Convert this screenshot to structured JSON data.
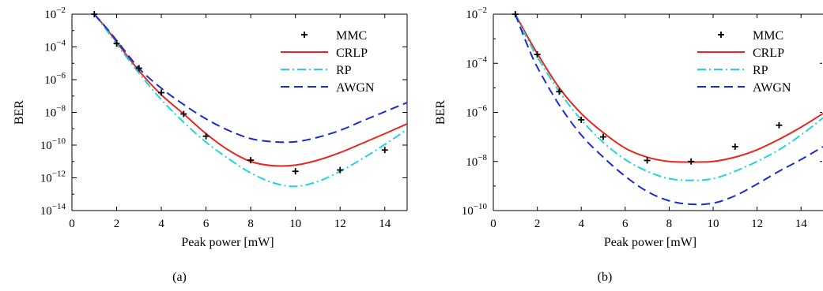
{
  "colors": {
    "MMC": "#000000",
    "CRLP": "#e8251f",
    "RP": "#21d6d9",
    "AWGN": "#1a2bd6"
  },
  "chart_data": [
    {
      "type": "line",
      "caption": "(a)",
      "xlabel": "Peak power [mW]",
      "ylabel": "BER",
      "xlim": [
        0,
        15
      ],
      "ylim_exp": [
        -14,
        -2
      ],
      "yscale": "log",
      "grid": false,
      "legend_position": "top-right",
      "x_ticks": [
        {
          "v": 0,
          "label": "0"
        },
        {
          "v": 2,
          "label": "2"
        },
        {
          "v": 4,
          "label": "4"
        },
        {
          "v": 6,
          "label": "6"
        },
        {
          "v": 8,
          "label": "8"
        },
        {
          "v": 10,
          "label": "10"
        },
        {
          "v": 12,
          "label": "12"
        },
        {
          "v": 14,
          "label": "14"
        }
      ],
      "y_ticks": [
        {
          "e": -2,
          "base": "10",
          "exp": "−2"
        },
        {
          "e": -4,
          "base": "10",
          "exp": "−4"
        },
        {
          "e": -6,
          "base": "10",
          "exp": "−6"
        },
        {
          "e": -8,
          "base": "10",
          "exp": "−8"
        },
        {
          "e": -10,
          "base": "10",
          "exp": "−10"
        },
        {
          "e": -12,
          "base": "10",
          "exp": "−12"
        },
        {
          "e": -14,
          "base": "10",
          "exp": "−14"
        }
      ],
      "series": [
        {
          "name": "MMC",
          "style": "points",
          "color": "MMC",
          "x": [
            1,
            2,
            3,
            4,
            5,
            6,
            8,
            10,
            12,
            14
          ],
          "y": [
            0.01,
            0.00016,
            5e-06,
            1.6e-07,
            8e-09,
            3.5e-10,
            1.2e-11,
            2.5e-12,
            3e-12,
            5e-11
          ]
        },
        {
          "name": "CRLP",
          "style": "solid",
          "color": "CRLP",
          "x": [
            1,
            1.5,
            2,
            3,
            4,
            5,
            6,
            7,
            8,
            9,
            10,
            11,
            12,
            13,
            14,
            15
          ],
          "y": [
            0.01,
            0.0016,
            0.0002,
            3.5e-06,
            1.2e-07,
            8e-09,
            5e-10,
            5e-11,
            1e-11,
            5.5e-12,
            6e-12,
            1.2e-11,
            3.5e-11,
            1.3e-10,
            5e-10,
            2e-09
          ]
        },
        {
          "name": "RP",
          "style": "dashdot",
          "color": "RP",
          "x": [
            1,
            1.5,
            2,
            3,
            4,
            5,
            6,
            7,
            8,
            9,
            10,
            11,
            12,
            13,
            14,
            15
          ],
          "y": [
            0.01,
            0.0013,
            0.00015,
            2.5e-06,
            6e-08,
            2.5e-09,
            1.5e-10,
            1.5e-11,
            2e-12,
            5e-13,
            3e-13,
            6e-13,
            2.5e-12,
            1.5e-11,
            1.1e-10,
            9e-10
          ]
        },
        {
          "name": "AWGN",
          "style": "dashed",
          "color": "AWGN",
          "x": [
            1,
            1.5,
            2,
            3,
            4,
            5,
            6,
            7,
            8,
            9,
            10,
            11,
            12,
            13,
            14,
            15
          ],
          "y": [
            0.01,
            0.0017,
            0.00025,
            5e-06,
            3e-07,
            3e-08,
            4e-09,
            8e-10,
            2.5e-10,
            1.6e-10,
            1.6e-10,
            3e-10,
            8e-10,
            3e-09,
            1.1e-08,
            4e-08
          ]
        }
      ]
    },
    {
      "type": "line",
      "caption": "(b)",
      "xlabel": "Peak power [mW]",
      "ylabel": "BER",
      "xlim": [
        0,
        15
      ],
      "ylim_exp": [
        -10,
        -2
      ],
      "yscale": "log",
      "grid": false,
      "legend_position": "top-right",
      "x_ticks": [
        {
          "v": 0,
          "label": "0"
        },
        {
          "v": 2,
          "label": "2"
        },
        {
          "v": 4,
          "label": "4"
        },
        {
          "v": 6,
          "label": "6"
        },
        {
          "v": 8,
          "label": "8"
        },
        {
          "v": 10,
          "label": "10"
        },
        {
          "v": 12,
          "label": "12"
        },
        {
          "v": 14,
          "label": "14"
        }
      ],
      "y_ticks": [
        {
          "e": -2,
          "base": "10",
          "exp": "−2"
        },
        {
          "e": -4,
          "base": "10",
          "exp": "−4"
        },
        {
          "e": -6,
          "base": "10",
          "exp": "−6"
        },
        {
          "e": -8,
          "base": "10",
          "exp": "−8"
        },
        {
          "e": -10,
          "base": "10",
          "exp": "−10"
        }
      ],
      "series": [
        {
          "name": "MMC",
          "style": "points",
          "color": "MMC",
          "x": [
            1,
            2,
            3,
            4,
            5,
            7,
            9,
            11,
            13
          ],
          "y": [
            0.01,
            0.00023,
            7e-06,
            5e-07,
            1e-07,
            1.1e-08,
            1e-08,
            4e-08,
            3e-07
          ]
        },
        {
          "name": "CRLP",
          "style": "solid",
          "color": "CRLP",
          "x": [
            1,
            1.5,
            2,
            3,
            4,
            5,
            6,
            7,
            8,
            9,
            10,
            11,
            12,
            13,
            14,
            15
          ],
          "y": [
            0.01,
            0.0015,
            0.00025,
            1e-05,
            9e-07,
            1.5e-07,
            3.5e-08,
            1.5e-08,
            1e-08,
            9.5e-09,
            1e-08,
            1.5e-08,
            3e-08,
            8e-08,
            2.5e-07,
            9e-07
          ]
        },
        {
          "name": "RP",
          "style": "dashdot",
          "color": "RP",
          "x": [
            1,
            1.5,
            2,
            3,
            4,
            5,
            6,
            7,
            8,
            9,
            10,
            11,
            12,
            13,
            14,
            15
          ],
          "y": [
            0.01,
            0.0012,
            0.00018,
            7e-06,
            5e-07,
            6e-08,
            1.2e-08,
            4e-09,
            2e-09,
            1.7e-09,
            2e-09,
            4e-09,
            1e-08,
            3e-08,
            1.2e-07,
            6e-07
          ]
        },
        {
          "name": "AWGN",
          "style": "dashed",
          "color": "AWGN",
          "x": [
            1,
            1.5,
            2,
            3,
            4,
            5,
            6,
            7,
            8,
            9,
            10,
            11,
            12,
            13,
            14,
            15
          ],
          "y": [
            0.01,
            0.0007,
            7e-05,
            2e-06,
            1.2e-07,
            1.5e-08,
            2.5e-09,
            6e-10,
            2.5e-10,
            1.8e-10,
            2e-10,
            4e-10,
            1.2e-09,
            4e-09,
            1.2e-08,
            4e-08
          ]
        }
      ]
    }
  ]
}
